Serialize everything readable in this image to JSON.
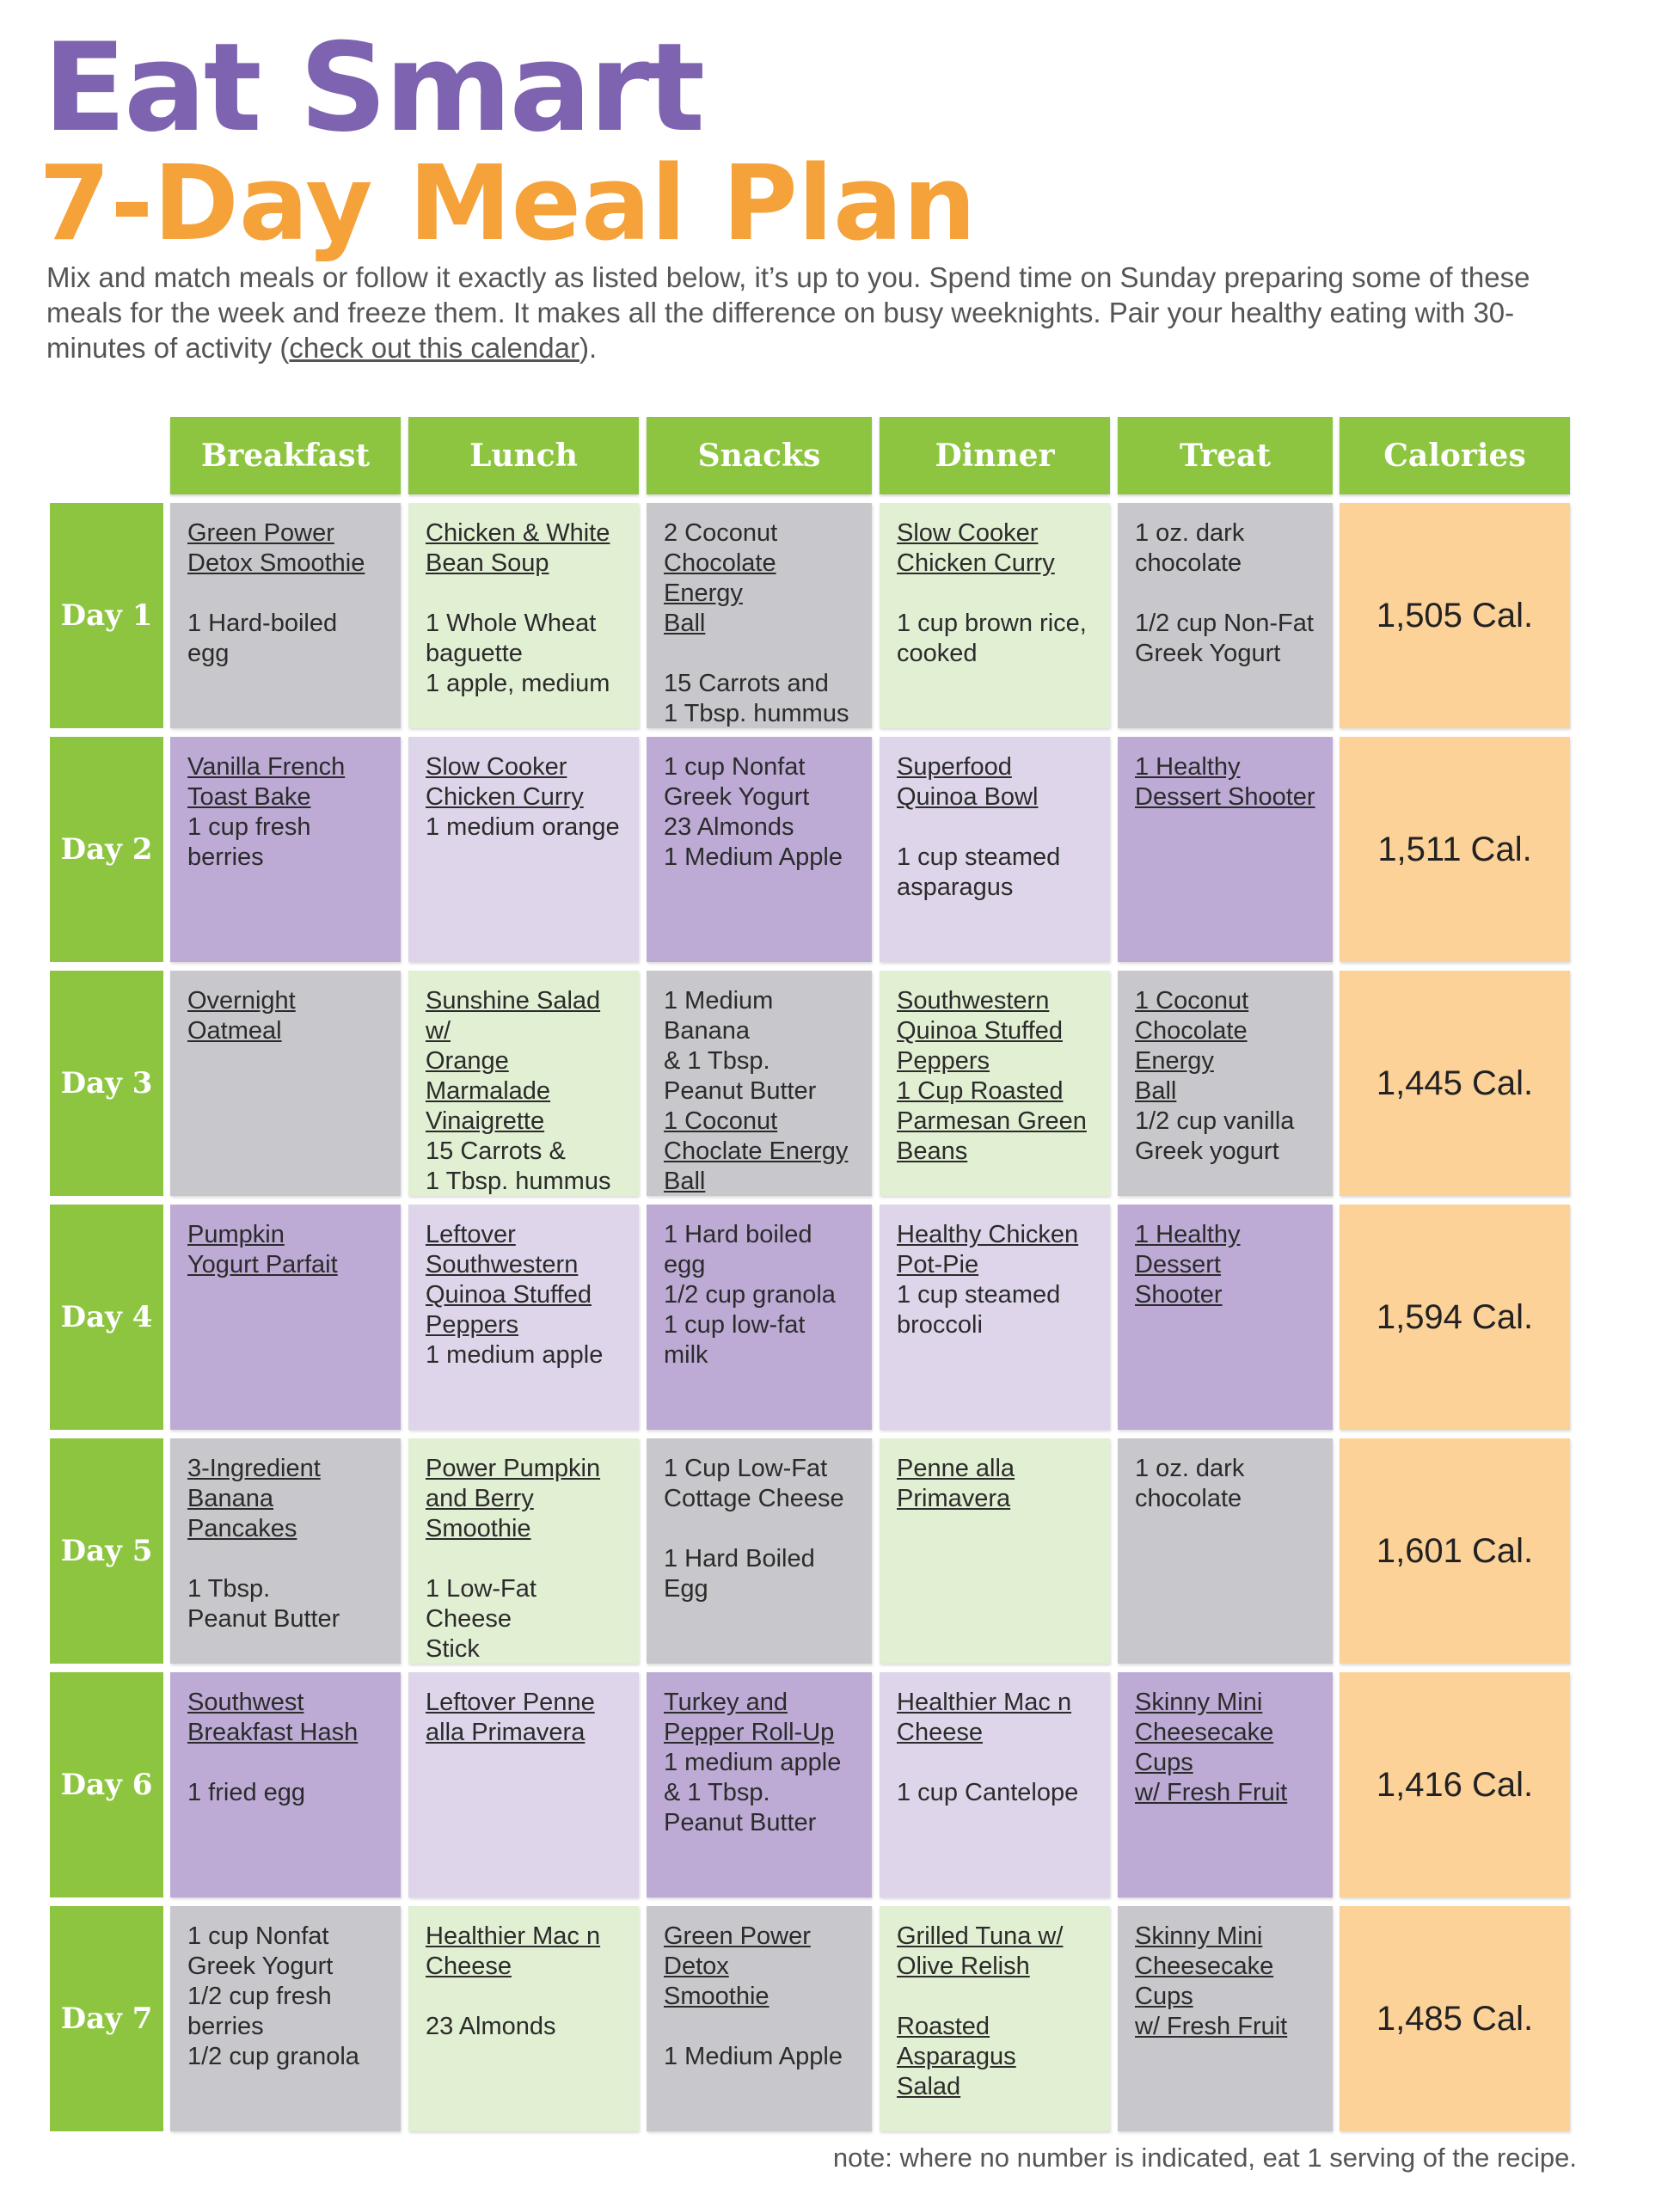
{
  "title": {
    "line1": "Eat Smart",
    "line2": "7-Day Meal Plan"
  },
  "intro": {
    "text_before": "Mix and match meals or follow it exactly as listed below, it’s up to you. Spend time on Sunday preparing some of these meals for the week and freeze them. It makes all the difference on busy weeknights. Pair your healthy eating with 30-minutes of activity (",
    "link": "check out this calendar",
    "text_after": ")."
  },
  "headers": [
    "Breakfast",
    "Lunch",
    "Snacks",
    "Dinner",
    "Treat",
    "Calories"
  ],
  "days": [
    {
      "label": "Day 1",
      "calories": "1,505 Cal.",
      "meals": [
        [
          "Green Power",
          "Detox Smoothie",
          "",
          "1 Hard-boiled",
          "egg"
        ],
        [
          "Chicken & White",
          "Bean Soup",
          "",
          "1 Whole Wheat",
          "baguette",
          "1 apple, medium"
        ],
        [
          "2 Coconut",
          "Chocolate Energy",
          "Ball",
          "",
          "15 Carrots and",
          "1 Tbsp. hummus"
        ],
        [
          "Slow Cooker",
          "Chicken Curry",
          "",
          "1 cup brown rice,",
          "cooked"
        ],
        [
          "1 oz. dark",
          "chocolate",
          "",
          "1/2 cup Non-Fat",
          "Greek Yogurt"
        ]
      ]
    },
    {
      "label": "Day 2",
      "calories": "1,511 Cal.",
      "meals": [
        [
          "Vanilla French",
          "Toast Bake",
          "1 cup fresh",
          "berries"
        ],
        [
          "Slow Cooker",
          "Chicken Curry",
          "1 medium orange"
        ],
        [
          "1 cup Nonfat",
          "Greek Yogurt",
          "23 Almonds",
          "1 Medium Apple"
        ],
        [
          "Superfood",
          "Quinoa Bowl",
          "",
          "1 cup steamed",
          "asparagus"
        ],
        [
          "1 Healthy",
          "Dessert Shooter"
        ]
      ]
    },
    {
      "label": "Day 3",
      "calories": "1,445 Cal.",
      "meals": [
        [
          "Overnight",
          "Oatmeal"
        ],
        [
          "Sunshine Salad w/",
          "Orange",
          "Marmalade",
          "Vinaigrette",
          "15 Carrots &",
          "1 Tbsp. hummus"
        ],
        [
          "1 Medium Banana",
          "& 1 Tbsp.",
          "Peanut Butter",
          "1 Coconut",
          "Choclate Energy",
          "Ball"
        ],
        [
          "Southwestern",
          "Quinoa Stuffed",
          "Peppers",
          "1 Cup Roasted",
          "Parmesan Green",
          "Beans"
        ],
        [
          "1 Coconut",
          "Chocolate Energy",
          "Ball",
          "1/2 cup vanilla",
          "Greek yogurt"
        ]
      ]
    },
    {
      "label": "Day 4",
      "calories": "1,594 Cal.",
      "meals": [
        [
          "Pumpkin",
          "Yogurt Parfait"
        ],
        [
          "Leftover",
          "Southwestern",
          "Quinoa Stuffed",
          "Peppers",
          "1 medium apple"
        ],
        [
          "1 Hard boiled",
          "egg",
          "1/2 cup granola",
          "1 cup low-fat",
          "milk"
        ],
        [
          "Healthy Chicken",
          "Pot-Pie",
          "1 cup steamed",
          "broccoli"
        ],
        [
          "1 Healthy",
          "Dessert",
          "Shooter"
        ]
      ]
    },
    {
      "label": "Day 5",
      "calories": "1,601 Cal.",
      "meals": [
        [
          "3-Ingredient",
          "Banana Pancakes",
          "",
          "1 Tbsp.",
          "Peanut Butter"
        ],
        [
          "Power Pumpkin",
          "and Berry",
          "Smoothie",
          "",
          "1 Low-Fat Cheese",
          "Stick"
        ],
        [
          "1 Cup Low-Fat",
          "Cottage Cheese",
          "",
          "1 Hard Boiled Egg"
        ],
        [
          "Penne alla",
          "Primavera"
        ],
        [
          "1 oz. dark",
          "chocolate"
        ]
      ]
    },
    {
      "label": "Day 6",
      "calories": "1,416 Cal.",
      "meals": [
        [
          "Southwest",
          "Breakfast Hash",
          "",
          "1 fried egg"
        ],
        [
          "Leftover Penne",
          "alla Primavera"
        ],
        [
          "Turkey and",
          "Pepper Roll-Up",
          "1 medium apple",
          "& 1 Tbsp.",
          "Peanut Butter"
        ],
        [
          "Healthier Mac n",
          "Cheese",
          "",
          "1 cup Cantelope"
        ],
        [
          "Skinny Mini",
          "Cheesecake",
          "Cups",
          "w/ Fresh Fruit"
        ]
      ]
    },
    {
      "label": "Day 7",
      "calories": "1,485 Cal.",
      "meals": [
        [
          "1 cup Nonfat",
          "Greek Yogurt",
          "1/2 cup fresh",
          "berries",
          "1/2 cup granola"
        ],
        [
          "Healthier Mac n",
          "Cheese",
          "",
          "23 Almonds"
        ],
        [
          "Green Power",
          "Detox",
          "Smoothie",
          "",
          "1 Medium Apple"
        ],
        [
          "Grilled Tuna w/",
          "Olive Relish",
          "",
          "Roasted Asparagus",
          "Salad"
        ],
        [
          "Skinny Mini",
          "Cheesecake",
          "Cups",
          "w/ Fresh Fruit"
        ]
      ]
    }
  ],
  "note": "note: where no number is indicated, eat 1 serving of the recipe.",
  "colors": {
    "title_purple": "#7e63b0",
    "title_orange": "#f6a23a",
    "header_green": "#8dc540",
    "gray": "#c8c7cb",
    "light_green": "#e1efd2",
    "purple": "#bdabd6",
    "light_purple": "#ded5ea",
    "calories_orange": "#fcd299"
  }
}
